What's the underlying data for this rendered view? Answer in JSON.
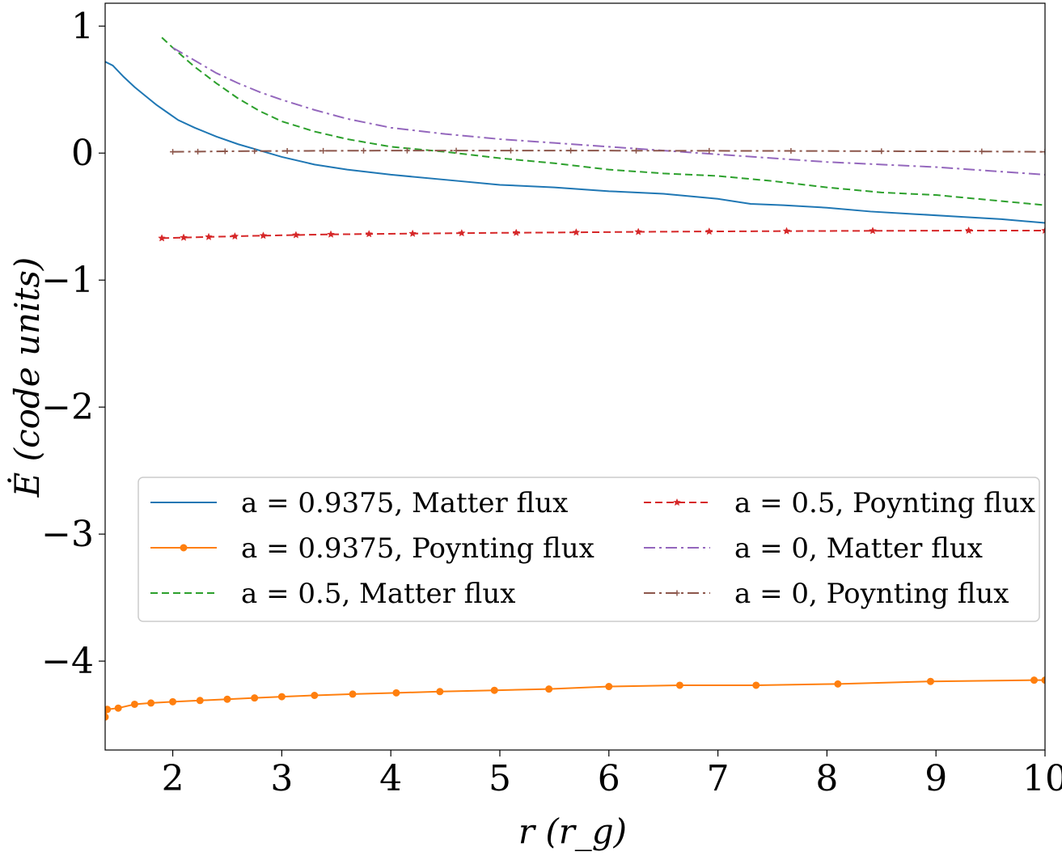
{
  "chart_data": {
    "type": "line",
    "title": "",
    "xlabel": "r (r_g)",
    "ylabel": "Ė (code units)",
    "xlim": [
      1.38,
      10.0
    ],
    "ylim": [
      -4.7,
      1.18
    ],
    "grid": false,
    "legend_position": "lower-center",
    "xticks": [
      2,
      3,
      4,
      5,
      6,
      7,
      8,
      9,
      10
    ],
    "xtick_labels": [
      "2",
      "3",
      "4",
      "5",
      "6",
      "7",
      "8",
      "9",
      "10"
    ],
    "yticks": [
      1,
      0,
      -1,
      -2,
      -3,
      -4
    ],
    "ytick_labels": [
      "1",
      "0",
      "−1",
      "−2",
      "−3",
      "−4"
    ],
    "series": [
      {
        "name": "a = 0.9375,  Matter flux",
        "color": "#1f77b4",
        "dash": "solid",
        "marker": "none",
        "x": [
          1.38,
          1.45,
          1.55,
          1.65,
          1.75,
          1.85,
          1.95,
          2.05,
          2.2,
          2.4,
          2.6,
          2.8,
          3.0,
          3.3,
          3.6,
          4.0,
          4.5,
          5.0,
          5.5,
          6.0,
          6.5,
          7.0,
          7.3,
          7.6,
          8.0,
          8.4,
          8.8,
          9.2,
          9.6,
          10.0
        ],
        "y": [
          0.72,
          0.69,
          0.6,
          0.52,
          0.45,
          0.38,
          0.32,
          0.26,
          0.2,
          0.13,
          0.07,
          0.02,
          -0.03,
          -0.09,
          -0.13,
          -0.17,
          -0.21,
          -0.25,
          -0.27,
          -0.3,
          -0.32,
          -0.36,
          -0.4,
          -0.41,
          -0.43,
          -0.46,
          -0.48,
          -0.5,
          -0.52,
          -0.55
        ]
      },
      {
        "name": "a = 0.9375,  Poynting flux",
        "color": "#ff7f0e",
        "dash": "solid",
        "marker": "circle",
        "x": [
          1.38,
          1.4,
          1.5,
          1.65,
          1.8,
          2.0,
          2.25,
          2.5,
          2.75,
          3.0,
          3.3,
          3.65,
          4.05,
          4.45,
          4.95,
          5.45,
          6.0,
          6.65,
          7.35,
          8.1,
          8.95,
          9.9,
          10.0
        ],
        "y": [
          -4.44,
          -4.38,
          -4.37,
          -4.34,
          -4.33,
          -4.32,
          -4.31,
          -4.3,
          -4.29,
          -4.28,
          -4.27,
          -4.26,
          -4.25,
          -4.24,
          -4.23,
          -4.22,
          -4.2,
          -4.19,
          -4.19,
          -4.18,
          -4.16,
          -4.15,
          -4.15
        ]
      },
      {
        "name": "a = 0.5,  Matter flux",
        "color": "#2ca02c",
        "dash": "dashed",
        "marker": "none",
        "x": [
          1.9,
          2.0,
          2.2,
          2.4,
          2.6,
          2.8,
          3.0,
          3.3,
          3.6,
          4.0,
          4.5,
          5.0,
          5.5,
          6.0,
          6.5,
          7.0,
          7.5,
          8.0,
          8.5,
          9.0,
          9.5,
          10.0
        ],
        "y": [
          0.91,
          0.83,
          0.68,
          0.55,
          0.43,
          0.33,
          0.25,
          0.17,
          0.11,
          0.05,
          0.01,
          -0.04,
          -0.08,
          -0.13,
          -0.16,
          -0.18,
          -0.22,
          -0.27,
          -0.31,
          -0.33,
          -0.37,
          -0.41
        ]
      },
      {
        "name": "a = 0.5,  Poynting flux",
        "color": "#d62728",
        "dash": "dashed",
        "marker": "star",
        "x": [
          1.9,
          2.1,
          2.33,
          2.57,
          2.83,
          3.13,
          3.45,
          3.8,
          4.2,
          4.65,
          5.15,
          5.7,
          6.27,
          6.92,
          7.63,
          8.42,
          9.3,
          10.0
        ],
        "y": [
          -0.67,
          -0.665,
          -0.66,
          -0.655,
          -0.65,
          -0.645,
          -0.64,
          -0.637,
          -0.634,
          -0.63,
          -0.627,
          -0.624,
          -0.62,
          -0.617,
          -0.614,
          -0.612,
          -0.61,
          -0.61
        ]
      },
      {
        "name": "a = 0,  Matter flux",
        "color": "#9467bd",
        "dash": "dashdot",
        "marker": "none",
        "x": [
          2.0,
          2.2,
          2.4,
          2.6,
          2.8,
          3.0,
          3.3,
          3.6,
          4.0,
          4.5,
          5.0,
          5.5,
          6.0,
          6.5,
          7.0,
          7.5,
          8.0,
          8.5,
          9.0,
          9.5,
          10.0
        ],
        "y": [
          0.83,
          0.73,
          0.63,
          0.55,
          0.48,
          0.42,
          0.34,
          0.27,
          0.2,
          0.15,
          0.11,
          0.08,
          0.05,
          0.02,
          -0.01,
          -0.04,
          -0.07,
          -0.09,
          -0.11,
          -0.14,
          -0.17
        ]
      },
      {
        "name": "a = 0,  Poynting flux",
        "color": "#8c564b",
        "dash": "dashdot",
        "marker": "plus",
        "x": [
          2.0,
          2.23,
          2.48,
          2.75,
          3.05,
          3.38,
          3.75,
          4.15,
          4.6,
          5.1,
          5.65,
          6.25,
          6.92,
          7.67,
          8.5,
          9.42,
          10.0
        ],
        "y": [
          0.01,
          0.012,
          0.014,
          0.016,
          0.017,
          0.018,
          0.019,
          0.02,
          0.02,
          0.02,
          0.02,
          0.019,
          0.018,
          0.017,
          0.015,
          0.013,
          0.01
        ]
      }
    ]
  }
}
